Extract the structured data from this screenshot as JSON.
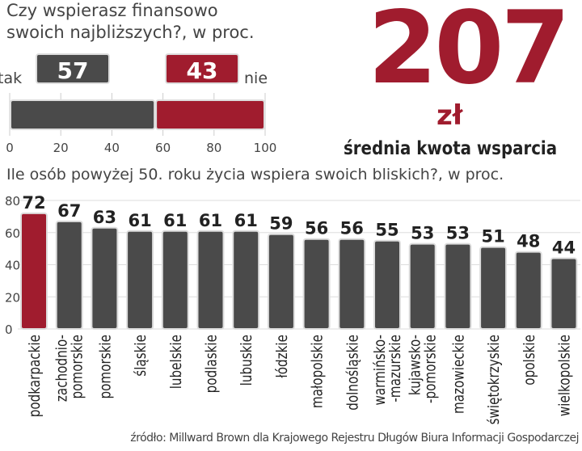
{
  "colors": {
    "highlight": "#a01c2e",
    "bar": "#4a4a4a"
  },
  "chart_data": [
    {
      "type": "bar",
      "orientation": "horizontal-stacked",
      "title": "Czy wspierasz finansowo swoich najbliższych?, w proc.",
      "series": [
        {
          "name": "tak",
          "value": 57,
          "color": "#4a4a4a"
        },
        {
          "name": "nie",
          "value": 43,
          "color": "#a01c2e"
        }
      ],
      "xlim": [
        0,
        100
      ],
      "xticks": [
        "0",
        "20",
        "40",
        "60",
        "80",
        "100"
      ],
      "grid": true
    },
    {
      "type": "bar",
      "title": "Ile osób powyżej 50. roku życia wspiera swoich bliskich?, w proc.",
      "categories": [
        "podkarpackie",
        "zachodnio-\npomorskie",
        "pomorskie",
        "śląskie",
        "lubelskie",
        "podlaskie",
        "lubuskie",
        "łódzkie",
        "małopolskie",
        "dolnośląskie",
        "warmińsko-\n-mazurskie",
        "kujawsko-\n-pomorskie",
        "mazowieckie",
        "świętokrzyskie",
        "opolskie",
        "wielkopolskie"
      ],
      "values": [
        72,
        67,
        63,
        61,
        61,
        61,
        61,
        59,
        56,
        56,
        55,
        53,
        53,
        51,
        48,
        44
      ],
      "highlight_index": 0,
      "ylim": [
        0,
        80
      ],
      "yticks": [
        "0",
        "20",
        "40",
        "60",
        "80"
      ],
      "grid": true
    }
  ],
  "headline": {
    "value": "207",
    "unit": "zł",
    "label": "średnia kwota wsparcia"
  },
  "source": "źródło: Millward Brown dla Krajowego Rejestru Długów Biura Informacji Gospodarczej"
}
